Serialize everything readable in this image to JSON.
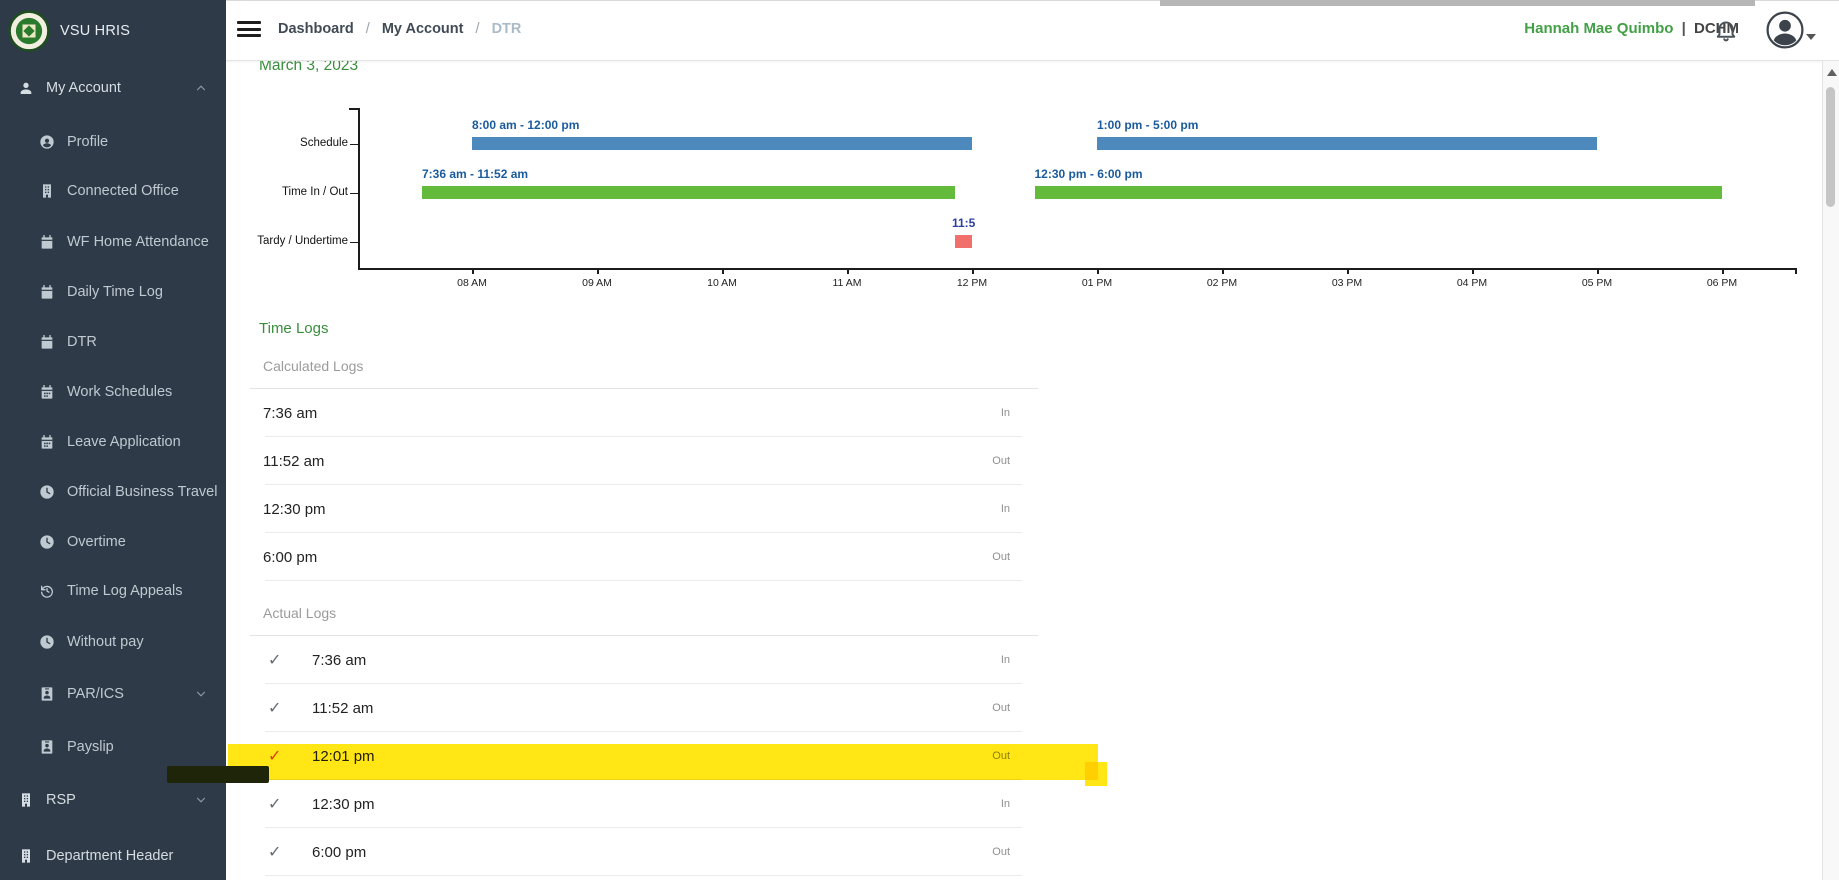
{
  "topbar": {
    "breadcrumb": {
      "items": [
        "Dashboard",
        "My Account",
        "DTR"
      ],
      "separator": "/"
    },
    "user": {
      "name": "Hannah Mae Quimbo",
      "separator": "|",
      "unit": "DCHM"
    }
  },
  "sidebar": {
    "brand": "VSU HRIS",
    "items": [
      {
        "label": "My Account",
        "icon": "person",
        "level": "top",
        "chevron": "up"
      },
      {
        "label": "Profile",
        "icon": "person-circle",
        "level": "sub"
      },
      {
        "label": "Connected Office",
        "icon": "building",
        "level": "sub"
      },
      {
        "label": "WF Home Attendance",
        "icon": "calendar",
        "level": "sub"
      },
      {
        "label": "Daily Time Log",
        "icon": "calendar",
        "level": "sub"
      },
      {
        "label": "DTR",
        "icon": "calendar",
        "level": "sub"
      },
      {
        "label": "Work Schedules",
        "icon": "calendar-alt",
        "level": "sub"
      },
      {
        "label": "Leave Application",
        "icon": "calendar-alt",
        "level": "sub"
      },
      {
        "label": "Official Business Travel",
        "icon": "clock",
        "level": "sub"
      },
      {
        "label": "Overtime",
        "icon": "clock",
        "level": "sub"
      },
      {
        "label": "Time Log Appeals",
        "icon": "history",
        "level": "sub"
      },
      {
        "label": "Without pay",
        "icon": "clock",
        "level": "sub"
      },
      {
        "label": "PAR/ICS",
        "icon": "id-badge",
        "level": "sub",
        "chevron": "down"
      },
      {
        "label": "Payslip",
        "icon": "id-badge",
        "level": "sub"
      },
      {
        "label": "RSP",
        "icon": "building",
        "level": "top",
        "chevron": "down"
      },
      {
        "label": "Department Header",
        "icon": "building",
        "level": "top"
      }
    ]
  },
  "page": {
    "date": "March 3, 2023",
    "section_title": "Time Logs"
  },
  "chart_data": {
    "type": "timeline",
    "rows": [
      "Schedule",
      "Time In / Out",
      "Tardy / Undertime"
    ],
    "x_ticks": [
      "08 AM",
      "09 AM",
      "10 AM",
      "11 AM",
      "12 PM",
      "01 PM",
      "02 PM",
      "03 PM",
      "04 PM",
      "05 PM",
      "06 PM"
    ],
    "x_range_hours": [
      8,
      18
    ],
    "bars": [
      {
        "row": 0,
        "label": "8:00 am - 12:00 pm",
        "start_hour": 8.0,
        "end_hour": 12.0,
        "color": "#4d89bd",
        "label_color": "#1a5b9d"
      },
      {
        "row": 0,
        "label": "1:00 pm - 5:00 pm",
        "start_hour": 13.0,
        "end_hour": 17.0,
        "color": "#4d89bd",
        "label_color": "#1a5b9d"
      },
      {
        "row": 1,
        "label": "7:36 am - 11:52 am",
        "start_hour": 7.6,
        "end_hour": 11.8667,
        "color": "#64ba3b",
        "label_color": "#1a5b9d"
      },
      {
        "row": 1,
        "label": "12:30 pm - 6:00 pm",
        "start_hour": 12.5,
        "end_hour": 18.0,
        "color": "#64ba3b",
        "label_color": "#1a5b9d"
      },
      {
        "row": 2,
        "label": "11:5",
        "start_hour": 11.8667,
        "end_hour": 12.0,
        "color": "#f2706b",
        "label_color": "#2b3f9e",
        "label_align": "center"
      }
    ]
  },
  "timelogs": {
    "calculated_header": "Calculated Logs",
    "actual_header": "Actual Logs",
    "calculated": [
      {
        "time": "7:36 am",
        "direction": "In"
      },
      {
        "time": "11:52 am",
        "direction": "Out"
      },
      {
        "time": "12:30 pm",
        "direction": "In"
      },
      {
        "time": "6:00 pm",
        "direction": "Out"
      }
    ],
    "actual": [
      {
        "time": "7:36 am",
        "direction": "In",
        "check": "✓"
      },
      {
        "time": "11:52 am",
        "direction": "Out",
        "check": "✓"
      },
      {
        "time": "12:01 pm",
        "direction": "Out",
        "check": "✓",
        "highlighted": true
      },
      {
        "time": "12:30 pm",
        "direction": "In",
        "check": "✓"
      },
      {
        "time": "6:00 pm",
        "direction": "Out",
        "check": "✓"
      }
    ]
  },
  "annotation": {
    "highlight_color": "#ffe400",
    "marker_color": "#1f2508",
    "highlighted_row": "12:01 pm"
  }
}
